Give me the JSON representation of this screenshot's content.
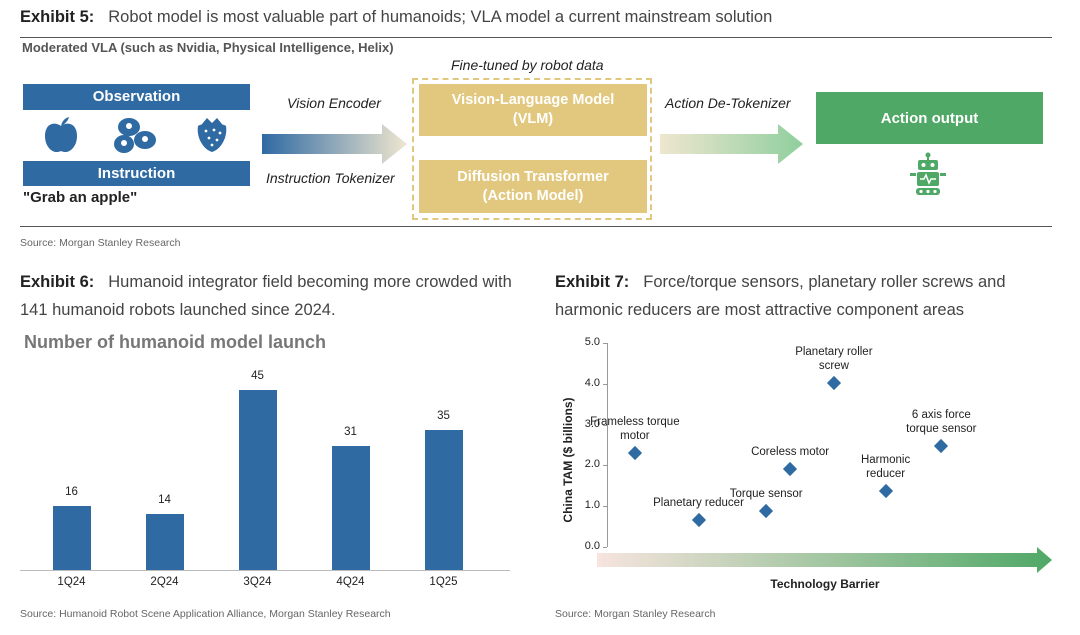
{
  "exhibit5": {
    "label": "Exhibit 5:",
    "title": "Robot model is most valuable part of humanoids; VLA model a current mainstream solution",
    "subtitle": "Moderated VLA (such as Nvidia, Physical Intelligence, Helix)",
    "observation": "Observation",
    "instruction": "Instruction",
    "quote": "\"Grab an apple\"",
    "vision_encoder": "Vision Encoder",
    "instruction_tokenizer": "Instruction Tokenizer",
    "fine_tuned": "Fine-tuned by robot data",
    "vlm_line1": "Vision-Language Model",
    "vlm_line2": "(VLM)",
    "dt_line1": "Diffusion Transformer",
    "dt_line2": "(Action Model)",
    "action_detokenizer": "Action De-Tokenizer",
    "action_output": "Action output",
    "source": "Source: Morgan Stanley Research",
    "icons": [
      "apple-icon",
      "blueberries-icon",
      "strawberry-icon",
      "robot-icon"
    ],
    "colors": {
      "blue": "#2f6aa3",
      "tan": "#e2c87f",
      "green": "#4fa866"
    }
  },
  "exhibit6": {
    "label": "Exhibit 6:",
    "title": "Humanoid integrator field becoming more crowded with 141 humanoid robots launched since 2024.",
    "source": "Source: Humanoid Robot Scene Application Alliance, Morgan Stanley Research"
  },
  "exhibit7": {
    "label": "Exhibit 7:",
    "title": "Force/torque sensors, planetary roller screws and harmonic reducers are most attractive component areas",
    "source": "Source: Morgan Stanley Research"
  },
  "chart_data": [
    {
      "type": "bar",
      "title": "Number of humanoid model launch",
      "categories": [
        "1Q24",
        "2Q24",
        "3Q24",
        "4Q24",
        "1Q25"
      ],
      "values": [
        16,
        14,
        45,
        31,
        35
      ],
      "ylim": [
        0,
        50
      ],
      "grid": false,
      "color": "#2f6aa3"
    },
    {
      "type": "scatter",
      "xlabel": "Technology Barrier",
      "ylabel": "China TAM ($ billions)",
      "ylim": [
        0.0,
        5.0
      ],
      "yticks": [
        "0.0",
        "1.0",
        "2.0",
        "3.0",
        "4.0",
        "5.0"
      ],
      "xlim": [
        0,
        10
      ],
      "points": [
        {
          "label": [
            "Frameless torque",
            "motor"
          ],
          "x": 0.7,
          "y": 2.3
        },
        {
          "label": [
            "Planetary reducer"
          ],
          "x": 2.3,
          "y": 0.65
        },
        {
          "label": [
            "Torque sensor"
          ],
          "x": 4.0,
          "y": 0.88
        },
        {
          "label": [
            "Coreless motor"
          ],
          "x": 4.6,
          "y": 1.9
        },
        {
          "label": [
            "Planetary roller",
            "screw"
          ],
          "x": 5.7,
          "y": 4.02
        },
        {
          "label": [
            "Harmonic",
            "reducer"
          ],
          "x": 7.0,
          "y": 1.37
        },
        {
          "label": [
            "6 axis force",
            "torque sensor"
          ],
          "x": 8.4,
          "y": 2.48
        }
      ],
      "color": "#2f6aa3"
    }
  ]
}
